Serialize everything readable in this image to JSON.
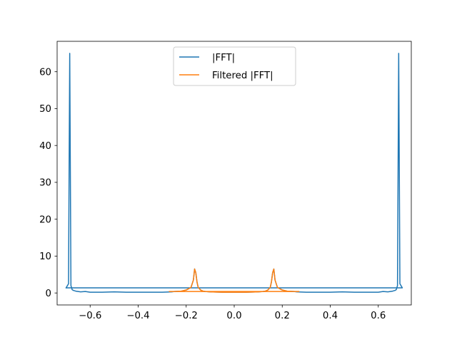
{
  "chart_data": {
    "type": "line",
    "title": "",
    "xlabel": "",
    "ylabel": "",
    "xlim": [
      -0.7375,
      0.7375
    ],
    "ylim": [
      -3.25,
      68.25
    ],
    "xticks": [
      -0.6,
      -0.4,
      -0.2,
      0.0,
      0.2,
      0.4,
      0.6
    ],
    "xtick_labels": [
      "−0.6",
      "−0.4",
      "−0.2",
      "0.0",
      "0.2",
      "0.4",
      "0.6"
    ],
    "yticks": [
      0,
      10,
      20,
      30,
      40,
      50,
      60
    ],
    "ytick_labels": [
      "0",
      "10",
      "20",
      "30",
      "40",
      "50",
      "60"
    ],
    "grid": false,
    "legend_position": "top-center",
    "series": [
      {
        "name": "|FFT|",
        "color": "#1f77b4",
        "x": [
          -0.7,
          -0.69,
          -0.685,
          -0.68,
          -0.675,
          -0.67,
          -0.66,
          -0.64,
          -0.62,
          -0.6,
          -0.55,
          -0.5,
          -0.45,
          -0.4,
          -0.35,
          -0.3,
          -0.26,
          -0.25,
          -0.22,
          -0.2,
          -0.18,
          -0.17,
          -0.165,
          -0.16,
          -0.155,
          -0.15,
          -0.14,
          -0.13,
          -0.12,
          -0.1,
          -0.05,
          0.0,
          0.05,
          0.1,
          0.12,
          0.13,
          0.14,
          0.15,
          0.155,
          0.16,
          0.165,
          0.17,
          0.18,
          0.2,
          0.22,
          0.25,
          0.26,
          0.3,
          0.35,
          0.4,
          0.45,
          0.5,
          0.55,
          0.6,
          0.62,
          0.64,
          0.66,
          0.67,
          0.675,
          0.68,
          0.685,
          0.69,
          0.7,
          0.7,
          -0.7
        ],
        "y": [
          1.4,
          2.5,
          65,
          2.0,
          0.9,
          0.7,
          0.5,
          0.3,
          0.4,
          0.2,
          0.2,
          0.3,
          0.2,
          0.2,
          0.2,
          0.2,
          0.3,
          0.4,
          0.5,
          0.8,
          1.5,
          3.5,
          6.5,
          5.5,
          3.0,
          1.5,
          0.8,
          0.5,
          0.4,
          0.3,
          0.2,
          0.2,
          0.2,
          0.3,
          0.4,
          0.5,
          0.8,
          1.5,
          3.0,
          5.5,
          6.5,
          3.5,
          1.5,
          0.8,
          0.5,
          0.4,
          0.3,
          0.2,
          0.2,
          0.2,
          0.3,
          0.2,
          0.2,
          0.2,
          0.4,
          0.3,
          0.5,
          0.7,
          0.9,
          2.0,
          65,
          2.5,
          1.4,
          1.4,
          1.4
        ]
      },
      {
        "name": "Filtered |FFT|",
        "color": "#ff7f0e",
        "x": [
          -0.27,
          -0.25,
          -0.22,
          -0.2,
          -0.18,
          -0.17,
          -0.165,
          -0.16,
          -0.155,
          -0.15,
          -0.14,
          -0.13,
          -0.12,
          -0.1,
          -0.05,
          0.0,
          0.05,
          0.1,
          0.12,
          0.13,
          0.14,
          0.15,
          0.155,
          0.16,
          0.165,
          0.17,
          0.18,
          0.2,
          0.22,
          0.25,
          0.27,
          0.27,
          -0.27
        ],
        "y": [
          0.4,
          0.4,
          0.5,
          0.8,
          1.5,
          3.5,
          6.5,
          5.5,
          3.0,
          1.5,
          0.8,
          0.5,
          0.4,
          0.3,
          0.2,
          0.2,
          0.2,
          0.3,
          0.4,
          0.5,
          0.8,
          1.5,
          3.0,
          5.5,
          6.5,
          3.5,
          1.5,
          0.8,
          0.5,
          0.4,
          0.4,
          0.4,
          0.4
        ]
      }
    ]
  }
}
